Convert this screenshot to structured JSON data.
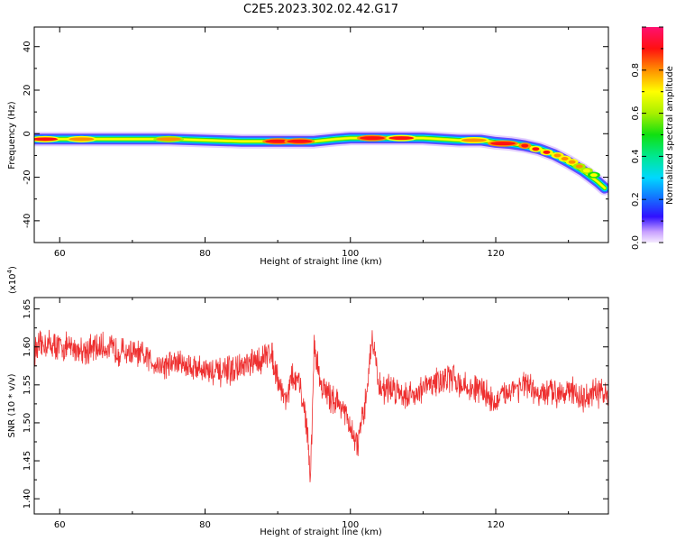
{
  "title": "C2E5.2023.302.02.42.G17",
  "colors": {
    "series": "#ee3030",
    "axis": "#000000"
  },
  "chart_data": [
    {
      "type": "heatmap",
      "xlabel": "Height of straight line (km)",
      "ylabel": "Frequency (Hz)",
      "xlim": [
        56.5,
        135.5
      ],
      "ylim": [
        -50,
        49
      ],
      "xticks": [
        "60",
        "80",
        "100",
        "120"
      ],
      "yticks": [
        "40",
        "20",
        "0",
        "-20",
        "-40"
      ],
      "colorbar": {
        "label": "Normalized spectral amplitude",
        "range": [
          0,
          1
        ],
        "ticks": [
          "0.0",
          "0.2",
          "0.4",
          "0.6",
          "0.8"
        ]
      },
      "ridge": {
        "height_km": [
          56.5,
          60,
          65,
          70,
          75,
          80,
          85,
          90,
          95,
          98,
          100,
          105,
          110,
          115,
          118,
          120,
          122,
          124,
          126,
          128,
          130,
          132,
          134,
          135
        ],
        "frequency_hz": [
          -2.5,
          -2.5,
          -2.5,
          -2.5,
          -2.5,
          -3,
          -3.5,
          -3.5,
          -3.5,
          -2.5,
          -2,
          -2,
          -2,
          -3,
          -3,
          -4,
          -4.5,
          -5.5,
          -7,
          -9.5,
          -13,
          -17,
          -22,
          -25
        ]
      },
      "peaks": {
        "height_km": [
          58,
          63,
          75,
          90,
          93,
          103,
          107,
          117,
          121,
          124,
          125.5,
          127,
          128.5,
          129.5,
          130.5,
          131.5,
          132.5,
          133.5
        ],
        "frequency_hz": [
          -2.5,
          -2.5,
          -2.5,
          -3.5,
          -3.5,
          -2,
          -2,
          -3,
          -4.5,
          -5.5,
          -7,
          -8.5,
          -10,
          -11.5,
          -13,
          -15,
          -17,
          -19
        ],
        "amplitude": [
          0.9,
          0.85,
          0.8,
          0.95,
          0.95,
          0.92,
          0.9,
          0.88,
          0.95,
          0.95,
          0.9,
          0.9,
          0.85,
          0.85,
          0.85,
          0.8,
          0.75,
          0.7
        ]
      }
    },
    {
      "type": "line",
      "xlabel": "Height of straight line (km)",
      "ylabel": "SNR (10 * v/v)",
      "multiplier": "(x10",
      "multiplier_exp": "4",
      "multiplier_close": ")",
      "xlim": [
        56.5,
        135.5
      ],
      "ylim": [
        1.38,
        1.665
      ],
      "xticks": [
        "60",
        "80",
        "100",
        "120"
      ],
      "yticks": [
        "1.65",
        "1.60",
        "1.55",
        "1.50",
        "1.45",
        "1.40"
      ],
      "series": [
        {
          "x": [
            56.5,
            58,
            60,
            62,
            64,
            66,
            68,
            70,
            72,
            74,
            76,
            78,
            80,
            82,
            84,
            86,
            88,
            89,
            90,
            91,
            92,
            93,
            94,
            94.5,
            95,
            96,
            97,
            98,
            99,
            100,
            101,
            102,
            103,
            104,
            106,
            108,
            110,
            112,
            114,
            116,
            118,
            120,
            122,
            124,
            126,
            128,
            130,
            132,
            134,
            135.5
          ],
          "y": [
            1.595,
            1.605,
            1.6,
            1.598,
            1.596,
            1.6,
            1.595,
            1.592,
            1.585,
            1.575,
            1.58,
            1.575,
            1.57,
            1.565,
            1.57,
            1.575,
            1.585,
            1.595,
            1.56,
            1.53,
            1.56,
            1.55,
            1.5,
            1.42,
            1.6,
            1.55,
            1.535,
            1.53,
            1.52,
            1.49,
            1.47,
            1.52,
            1.615,
            1.545,
            1.545,
            1.535,
            1.545,
            1.555,
            1.56,
            1.545,
            1.545,
            1.525,
            1.545,
            1.55,
            1.535,
            1.54,
            1.545,
            1.53,
            1.54,
            1.535
          ]
        }
      ]
    }
  ]
}
